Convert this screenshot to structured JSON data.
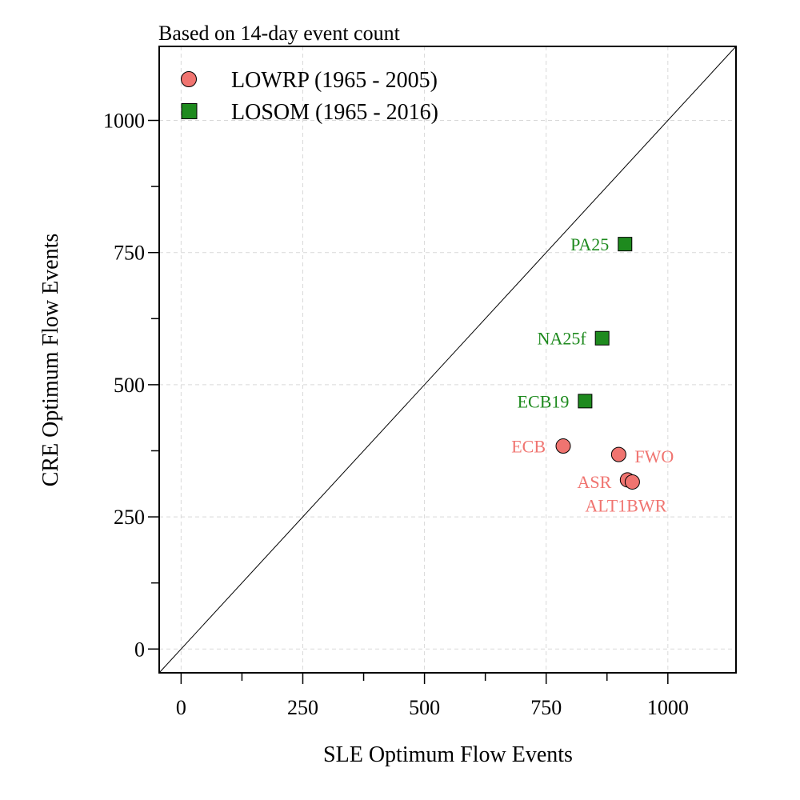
{
  "chart_data": {
    "type": "scatter",
    "title": "Based on 14-day event count",
    "xlabel": "SLE Optimum Flow Events",
    "ylabel": "CRE Optimum Flow Events",
    "xlim": [
      -45,
      1140
    ],
    "ylim": [
      -45,
      1140
    ],
    "xticks": [
      0,
      250,
      500,
      750,
      1000
    ],
    "yticks": [
      0,
      250,
      500,
      750,
      1000
    ],
    "minor_step": 125,
    "grid": true,
    "reference_line": "1:1",
    "legend_position": "top-left",
    "series": [
      {
        "name": "LOWRP (1965 - 2005)",
        "marker": "circle",
        "color": "#F07470",
        "points": [
          {
            "label": "ECB",
            "x": 785,
            "y": 384
          },
          {
            "label": "FWO",
            "x": 899,
            "y": 368
          },
          {
            "label": "ASR",
            "x": 917,
            "y": 320
          },
          {
            "label": "ALT1BWR",
            "x": 927,
            "y": 316
          }
        ]
      },
      {
        "name": "LOSOM (1965 - 2016)",
        "marker": "square",
        "color": "#1E8A1E",
        "points": [
          {
            "label": "PA25",
            "x": 912,
            "y": 766
          },
          {
            "label": "NA25f",
            "x": 865,
            "y": 588
          },
          {
            "label": "ECB19",
            "x": 830,
            "y": 469
          }
        ]
      }
    ]
  }
}
